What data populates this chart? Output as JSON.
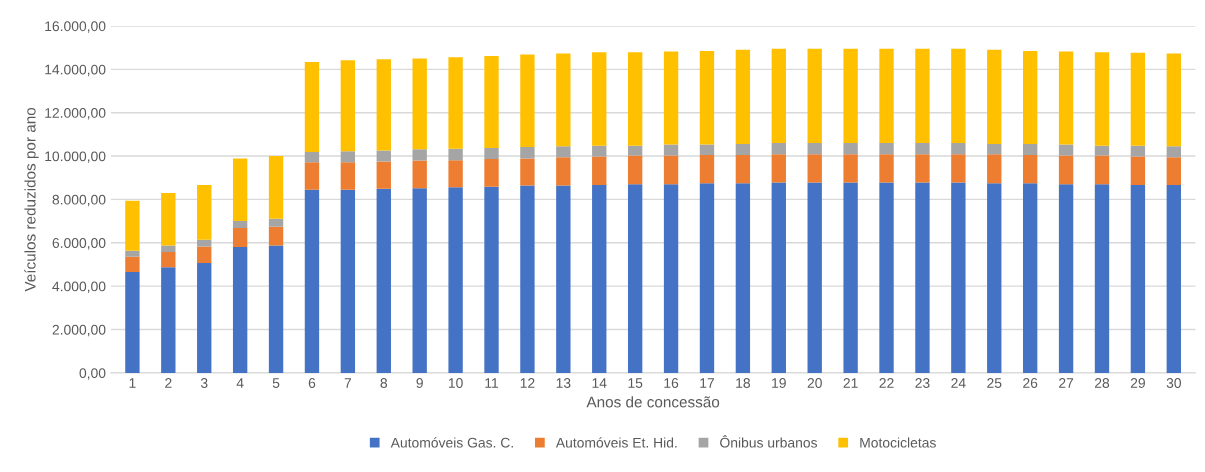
{
  "chart_data": {
    "type": "bar",
    "stacked": true,
    "xlabel": "Anos de concessão",
    "ylabel": "Veículos reduzidos por ano",
    "categories": [
      "1",
      "2",
      "3",
      "4",
      "5",
      "6",
      "7",
      "8",
      "9",
      "10",
      "11",
      "12",
      "13",
      "14",
      "15",
      "16",
      "17",
      "18",
      "19",
      "20",
      "21",
      "22",
      "23",
      "24",
      "25",
      "26",
      "27",
      "28",
      "29",
      "30"
    ],
    "series": [
      {
        "name": "Automóveis Gas. C.",
        "color": "#4472c4",
        "values": [
          4650,
          4870,
          5070,
          5810,
          5870,
          8450,
          8450,
          8490,
          8520,
          8560,
          8590,
          8640,
          8640,
          8670,
          8700,
          8700,
          8750,
          8750,
          8780,
          8780,
          8780,
          8780,
          8780,
          8780,
          8750,
          8750,
          8700,
          8700,
          8670,
          8670
        ]
      },
      {
        "name": "Automóveis Et. Hid.",
        "color": "#ed7d31",
        "values": [
          710,
          710,
          760,
          870,
          870,
          1260,
          1260,
          1260,
          1280,
          1250,
          1270,
          1250,
          1310,
          1310,
          1320,
          1320,
          1300,
          1300,
          1300,
          1300,
          1300,
          1300,
          1300,
          1300,
          1330,
          1300,
          1320,
          1320,
          1310,
          1280
        ]
      },
      {
        "name": "Ônibus urbanos",
        "color": "#a5a5a5",
        "values": [
          270,
          290,
          310,
          320,
          370,
          480,
          510,
          510,
          510,
          530,
          510,
          530,
          500,
          500,
          460,
          510,
          480,
          510,
          520,
          520,
          520,
          520,
          520,
          520,
          480,
          510,
          510,
          460,
          500,
          500
        ]
      },
      {
        "name": "Motocicletas",
        "color": "#ffc000",
        "values": [
          2310,
          2430,
          2530,
          2890,
          2890,
          4150,
          4200,
          4210,
          4190,
          4220,
          4240,
          4260,
          4280,
          4310,
          4310,
          4290,
          4320,
          4340,
          4350,
          4350,
          4350,
          4350,
          4350,
          4350,
          4340,
          4290,
          4290,
          4310,
          4280,
          4280
        ]
      }
    ],
    "ylim": [
      0,
      16000
    ],
    "yticks": [
      {
        "value": 0,
        "label": "0,00"
      },
      {
        "value": 2000,
        "label": "2.000,00"
      },
      {
        "value": 4000,
        "label": "4.000,00"
      },
      {
        "value": 6000,
        "label": "6.000,00"
      },
      {
        "value": 8000,
        "label": "8.000,00"
      },
      {
        "value": 10000,
        "label": "10.000,00"
      },
      {
        "value": 12000,
        "label": "12.000,00"
      },
      {
        "value": 14000,
        "label": "14.000,00"
      },
      {
        "value": 16000,
        "label": "16.000,00"
      }
    ],
    "grid": "y",
    "legend": "bottom"
  }
}
